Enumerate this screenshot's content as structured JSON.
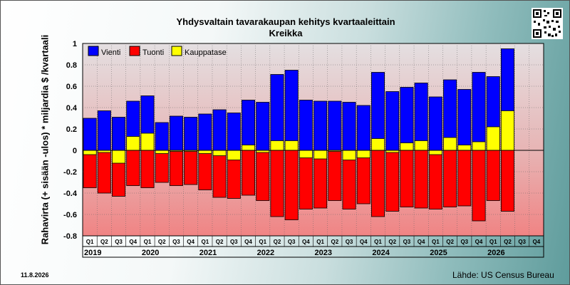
{
  "title": "Yhdysvaltain tavarakaupan kehitys kvartaaleittain",
  "subtitle": "Kreikka",
  "date": "11.8.2026",
  "source": "Lähde: US Census Bureau",
  "qr_icon": "qr-code-icon",
  "chart_data": {
    "type": "bar",
    "title": "Yhdysvaltain tavarakaupan kehitys kvartaaleittain",
    "subtitle": "Kreikka",
    "ylabel": "Rahavirta (+ sisään -ulos)  * miljardia $ /kvartaali",
    "xlabel": "",
    "ylim": [
      -0.8,
      1.0
    ],
    "yticks": [
      1,
      0.8,
      0.6,
      0.4,
      0.2,
      0,
      -0.2,
      -0.4,
      -0.6,
      -0.8
    ],
    "grid": true,
    "legend_placement": "top-left",
    "years": [
      "2019",
      "2020",
      "2021",
      "2022",
      "2023",
      "2024",
      "2025",
      "2026"
    ],
    "categories": [
      "Q1",
      "Q2",
      "Q3",
      "Q4",
      "Q1",
      "Q2",
      "Q3",
      "Q4",
      "Q1",
      "Q2",
      "Q3",
      "Q4",
      "Q1",
      "Q2",
      "Q3",
      "Q4",
      "Q1",
      "Q2",
      "Q3",
      "Q4",
      "Q1",
      "Q2",
      "Q3",
      "Q4",
      "Q1",
      "Q2",
      "Q3",
      "Q4",
      "Q1",
      "Q2",
      "Q3",
      "Q4"
    ],
    "series": [
      {
        "name": "Vienti",
        "color": "#0000ff",
        "values": [
          0.3,
          0.37,
          0.31,
          0.46,
          0.51,
          0.26,
          0.32,
          0.31,
          0.34,
          0.38,
          0.35,
          0.47,
          0.45,
          0.71,
          0.75,
          0.47,
          0.46,
          0.46,
          0.45,
          0.42,
          0.73,
          0.55,
          0.59,
          0.63,
          0.5,
          0.66,
          0.57,
          0.73,
          0.69,
          0.95,
          null,
          null
        ]
      },
      {
        "name": "Tuonti",
        "color": "#ff0000",
        "values": [
          -0.35,
          -0.4,
          -0.43,
          -0.33,
          -0.35,
          -0.3,
          -0.33,
          -0.32,
          -0.37,
          -0.44,
          -0.45,
          -0.42,
          -0.47,
          -0.62,
          -0.65,
          -0.55,
          -0.54,
          -0.47,
          -0.55,
          -0.5,
          -0.62,
          -0.57,
          -0.53,
          -0.54,
          -0.55,
          -0.53,
          -0.52,
          -0.66,
          -0.47,
          -0.57,
          null,
          null
        ]
      },
      {
        "name": "Kauppatase",
        "color": "#ffff00",
        "values": [
          -0.04,
          -0.02,
          -0.12,
          0.13,
          0.16,
          -0.03,
          -0.01,
          -0.01,
          -0.03,
          -0.05,
          -0.09,
          0.05,
          -0.02,
          0.09,
          0.09,
          -0.07,
          -0.08,
          -0.01,
          -0.09,
          -0.07,
          0.11,
          -0.02,
          0.07,
          0.09,
          -0.04,
          0.12,
          0.05,
          0.08,
          0.22,
          0.37,
          null,
          null
        ]
      }
    ]
  }
}
